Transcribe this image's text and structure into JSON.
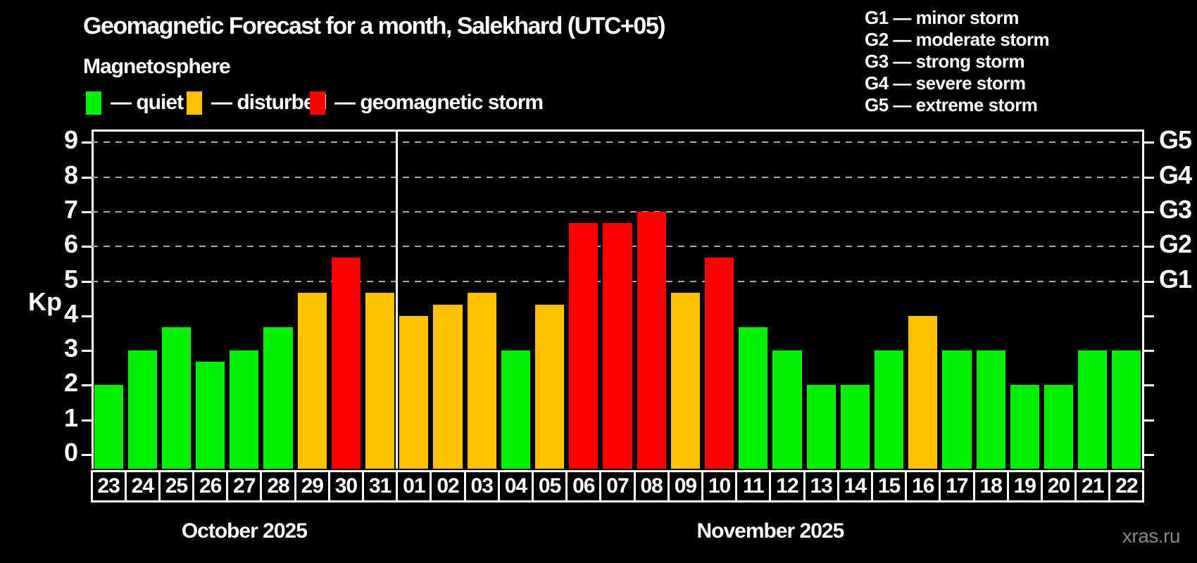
{
  "header": {
    "title": "Geomagnetic Forecast for a month, Salekhard (UTC+05)",
    "subtitle": "Magnetosphere"
  },
  "legend": {
    "items": [
      {
        "key": "quiet",
        "label": "— quiet",
        "color": "#00f000"
      },
      {
        "key": "disturbed",
        "label": "— disturbed",
        "color": "#ffc000"
      },
      {
        "key": "storm",
        "label": "— geomagnetic storm",
        "color": "#ff0000"
      }
    ]
  },
  "g_legend": [
    {
      "text": "G1 — minor storm"
    },
    {
      "text": "G2 — moderate storm"
    },
    {
      "text": "G3 — strong storm"
    },
    {
      "text": "G4 — severe storm"
    },
    {
      "text": "G5 — extreme storm"
    }
  ],
  "axes": {
    "ylabel": "Kp",
    "y_ticks": [
      "0",
      "1",
      "2",
      "3",
      "4",
      "5",
      "6",
      "7",
      "8",
      "9"
    ],
    "right_labels": [
      {
        "kp": 5,
        "text": "G1"
      },
      {
        "kp": 6,
        "text": "G2"
      },
      {
        "kp": 7,
        "text": "G3"
      },
      {
        "kp": 8,
        "text": "G4"
      },
      {
        "kp": 9,
        "text": "G5"
      }
    ]
  },
  "chart_data": {
    "type": "bar",
    "title": "Geomagnetic Forecast for a month, Salekhard (UTC+05)",
    "ylabel": "Kp",
    "ylim": [
      0,
      9
    ],
    "gridlines_at": [
      5,
      6,
      7,
      8,
      9
    ],
    "status_colors": {
      "quiet": "#00f000",
      "disturbed": "#ffc000",
      "storm": "#ff0000"
    },
    "months": [
      {
        "label": "October 2025",
        "days": [
          "23",
          "24",
          "25",
          "26",
          "27",
          "28",
          "29",
          "30",
          "31"
        ],
        "values": [
          2,
          3,
          3.67,
          2.67,
          3,
          3.67,
          4.67,
          5.67,
          4.67
        ],
        "status": [
          "quiet",
          "quiet",
          "quiet",
          "quiet",
          "quiet",
          "quiet",
          "disturbed",
          "storm",
          "disturbed"
        ]
      },
      {
        "label": "November 2025",
        "days": [
          "01",
          "02",
          "03",
          "04",
          "05",
          "06",
          "07",
          "08",
          "09",
          "10",
          "11",
          "12",
          "13",
          "14",
          "15",
          "16",
          "17",
          "18",
          "19",
          "20",
          "21",
          "22"
        ],
        "values": [
          4,
          4.33,
          4.67,
          3,
          4.33,
          6.67,
          6.67,
          7,
          4.67,
          5.67,
          3.67,
          3,
          2,
          2,
          3,
          4,
          3,
          3,
          2,
          2,
          3,
          3
        ],
        "status": [
          "disturbed",
          "disturbed",
          "disturbed",
          "quiet",
          "disturbed",
          "storm",
          "storm",
          "storm",
          "disturbed",
          "storm",
          "quiet",
          "quiet",
          "quiet",
          "quiet",
          "quiet",
          "disturbed",
          "quiet",
          "quiet",
          "quiet",
          "quiet",
          "quiet",
          "quiet"
        ]
      }
    ]
  },
  "watermark": "xras.ru"
}
